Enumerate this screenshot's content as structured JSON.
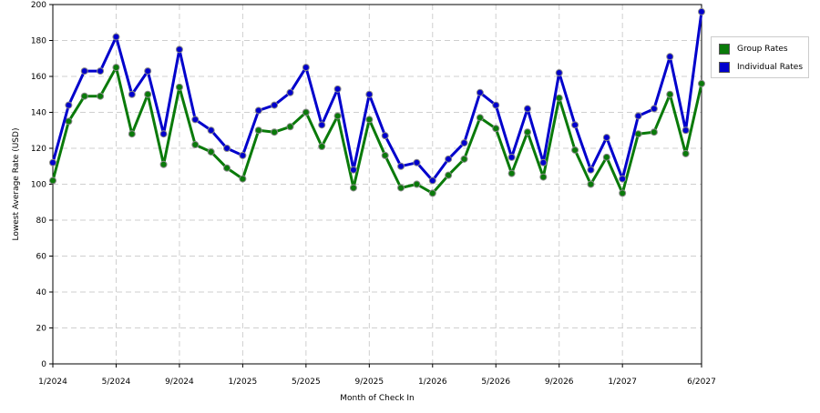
{
  "chart_data": {
    "type": "line",
    "xlabel": "Month of Check In",
    "ylabel": "Lowest Average Rate (USD)",
    "ylim": [
      0,
      200
    ],
    "yticks": [
      0,
      20,
      40,
      60,
      80,
      100,
      120,
      140,
      160,
      180,
      200
    ],
    "x_tick_labels": [
      "1/2024",
      "5/2024",
      "9/2024",
      "1/2025",
      "5/2025",
      "9/2025",
      "1/2026",
      "5/2026",
      "9/2026",
      "1/2027",
      "6/2027"
    ],
    "x_tick_positions": [
      0,
      4,
      8,
      12,
      16,
      20,
      24,
      28,
      32,
      36,
      41
    ],
    "grid": true,
    "legend_position": "right",
    "series": [
      {
        "name": "Group Rates",
        "color": "#0a7a0a",
        "values": [
          102,
          135,
          149,
          149,
          165,
          128,
          150,
          111,
          154,
          122,
          118,
          109,
          103,
          130,
          129,
          132,
          140,
          121,
          138,
          98,
          136,
          116,
          98,
          100,
          95,
          105,
          114,
          137,
          131,
          106,
          129,
          104,
          148,
          119,
          100,
          115,
          95,
          128,
          129,
          150,
          117,
          156
        ]
      },
      {
        "name": "Individual Rates",
        "color": "#0000cc",
        "values": [
          112,
          144,
          163,
          163,
          182,
          150,
          163,
          128,
          175,
          136,
          130,
          120,
          116,
          141,
          144,
          151,
          165,
          133,
          153,
          108,
          150,
          127,
          110,
          112,
          102,
          114,
          123,
          151,
          144,
          115,
          142,
          112,
          162,
          133,
          108,
          126,
          103,
          138,
          142,
          171,
          130,
          196
        ]
      }
    ]
  }
}
